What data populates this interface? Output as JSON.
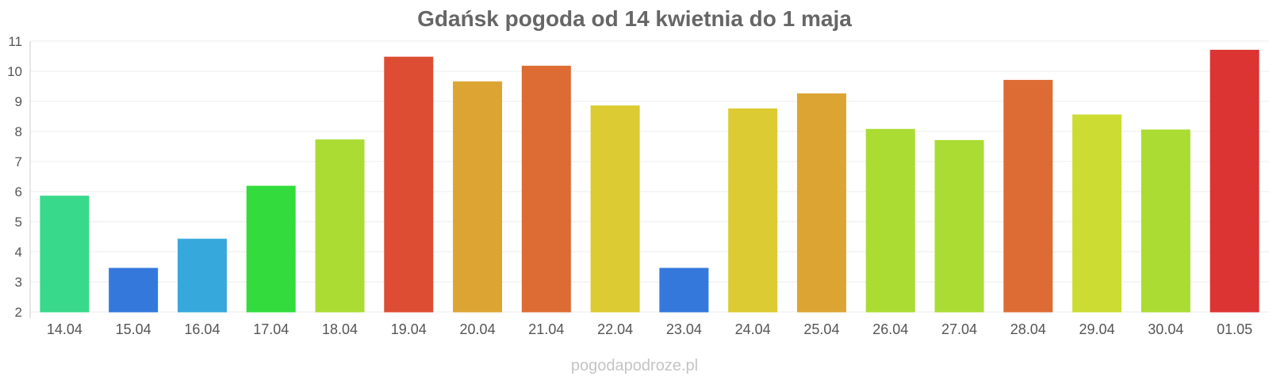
{
  "chart_data": {
    "type": "bar",
    "title": "Gdańsk pogoda od 14 kwietnia do 1 maja",
    "xlabel": "",
    "ylabel": "",
    "ylim": [
      2,
      11
    ],
    "yticks": [
      "2",
      "3",
      "4",
      "5",
      "6",
      "7",
      "8",
      "9",
      "10",
      "11"
    ],
    "categories": [
      "14.04",
      "15.04",
      "16.04",
      "17.04",
      "18.04",
      "19.04",
      "20.04",
      "21.04",
      "22.04",
      "23.04",
      "24.04",
      "25.04",
      "26.04",
      "27.04",
      "28.04",
      "29.04",
      "30.04",
      "01.05"
    ],
    "values": [
      5.85,
      3.45,
      4.42,
      6.18,
      7.72,
      10.47,
      9.65,
      10.17,
      8.85,
      3.45,
      8.75,
      9.25,
      8.07,
      7.7,
      9.7,
      8.55,
      8.05,
      10.7
    ],
    "colors": [
      "#38d98a",
      "#3478dc",
      "#37a8dc",
      "#33dc3c",
      "#aadc33",
      "#dc4d33",
      "#dca533",
      "#dc6c33",
      "#dccb33",
      "#3478dc",
      "#dccb33",
      "#dca533",
      "#aadc33",
      "#aadc33",
      "#dc6c33",
      "#ccdc33",
      "#aadc33",
      "#dc3333"
    ],
    "grid": true,
    "legend": "none"
  },
  "watermark": "pogodapodroze.pl"
}
